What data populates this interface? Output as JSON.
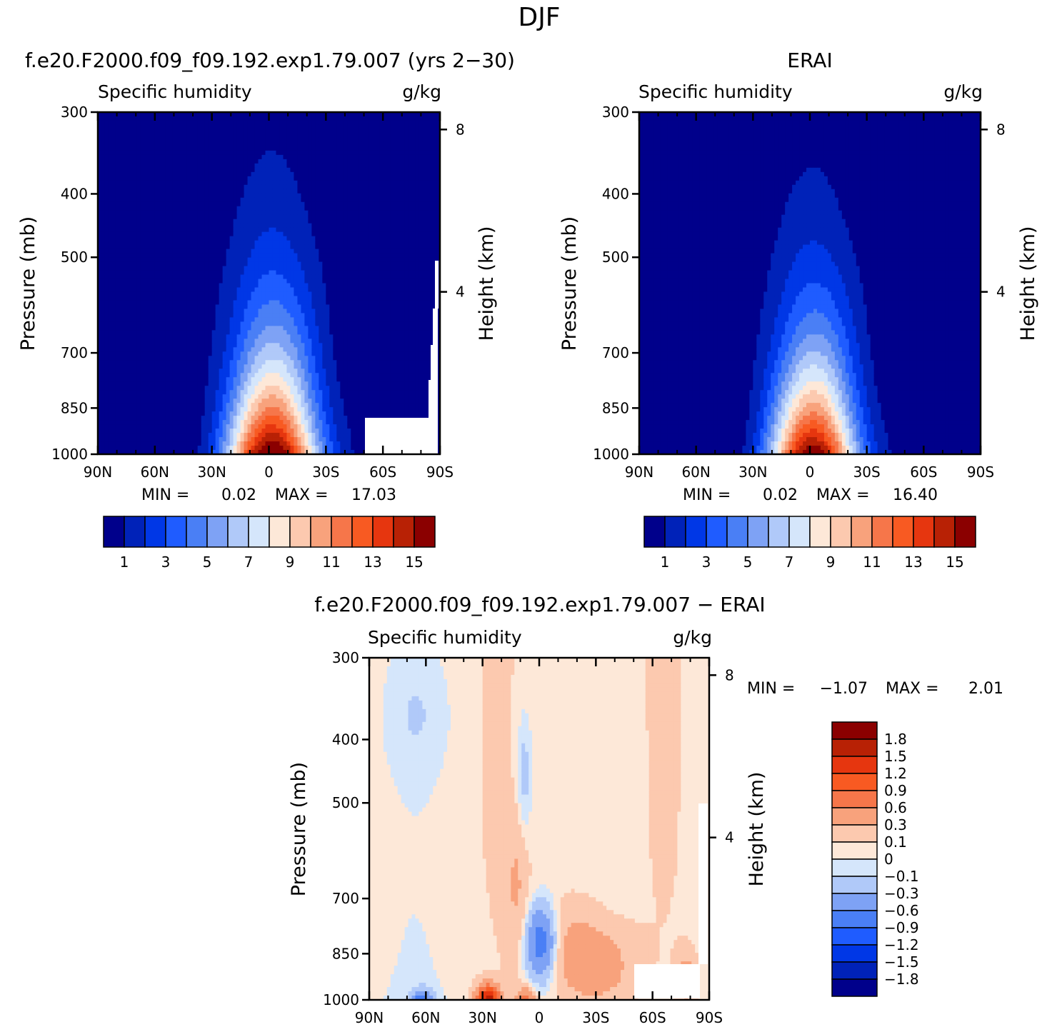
{
  "figure": {
    "title": "DJF"
  },
  "axes": {
    "x_ticks": [
      "90N",
      "60N",
      "30N",
      "0",
      "30S",
      "60S",
      "90S"
    ],
    "y_ticks": [
      "300",
      "400",
      "500",
      "700",
      "850",
      "1000"
    ],
    "height_ticks": [
      "8",
      "4"
    ],
    "left_label": "Pressure (mb)",
    "right_label": "Height (km)"
  },
  "palettes": {
    "sequential": [
      "#00008b",
      "#0022b8",
      "#0037e6",
      "#1f5cff",
      "#4a7ff5",
      "#7ea2f5",
      "#b0c9f9",
      "#d5e6fb",
      "#fde8d8",
      "#fcc9af",
      "#f8a27c",
      "#f6764a",
      "#f85a22",
      "#e6360f",
      "#b82105",
      "#8b0000"
    ],
    "diverging": [
      "#00008b",
      "#0022b8",
      "#0037e6",
      "#1f5cff",
      "#4a7ff5",
      "#7ea2f5",
      "#b0c9f9",
      "#d5e6fb",
      "#fde8d8",
      "#fcc9af",
      "#f8a27c",
      "#f6764a",
      "#f85a22",
      "#e6360f",
      "#b82105",
      "#8b0000"
    ]
  },
  "chart_data": [
    {
      "type": "heatmap",
      "title": "f.e20.F2000.f09_f09.192.exp1.79.007 (yrs 2−30)",
      "subtitle_left": "Specific humidity",
      "subtitle_right": "g/kg",
      "variable": "Specific humidity",
      "units": "g/kg",
      "xlim": [
        "90N",
        "90S"
      ],
      "ylim": [
        1000,
        300
      ],
      "y_scale": "log",
      "stats": {
        "min_label": "MIN =",
        "min": "0.02",
        "max_label": "MAX =",
        "max": "17.03"
      },
      "colorbar_labels": [
        "1",
        "3",
        "5",
        "7",
        "9",
        "11",
        "13",
        "15"
      ],
      "colorbar_levels": [
        1,
        2,
        3,
        4,
        5,
        6,
        7,
        8,
        9,
        10,
        11,
        12,
        13,
        14,
        15
      ],
      "field": {
        "peak": 17.03,
        "peak_lat": -2,
        "width": 24,
        "scale_height_km": 2.6
      }
    },
    {
      "type": "heatmap",
      "title": "ERAI",
      "subtitle_left": "Specific humidity",
      "subtitle_right": "g/kg",
      "variable": "Specific humidity",
      "units": "g/kg",
      "xlim": [
        "90N",
        "90S"
      ],
      "ylim": [
        1000,
        300
      ],
      "y_scale": "log",
      "stats": {
        "min_label": "MIN =",
        "min": "0.02",
        "max_label": "MAX =",
        "max": "16.40"
      },
      "colorbar_labels": [
        "1",
        "3",
        "5",
        "7",
        "9",
        "11",
        "13",
        "15"
      ],
      "colorbar_levels": [
        1,
        2,
        3,
        4,
        5,
        6,
        7,
        8,
        9,
        10,
        11,
        12,
        13,
        14,
        15
      ],
      "field": {
        "peak": 16.4,
        "peak_lat": -2,
        "width": 23,
        "scale_height_km": 2.5
      }
    },
    {
      "type": "heatmap",
      "title": "f.e20.F2000.f09_f09.192.exp1.79.007 − ERAI",
      "subtitle_left": "Specific humidity",
      "subtitle_right": "g/kg",
      "variable": "Specific humidity difference",
      "units": "g/kg",
      "xlim": [
        "90N",
        "90S"
      ],
      "ylim": [
        1000,
        300
      ],
      "y_scale": "log",
      "stats": {
        "min_label": "MIN =",
        "min": "−1.07",
        "max_label": "MAX =",
        "max": "2.01"
      },
      "colorbar_labels": [
        "1.8",
        "1.5",
        "1.2",
        "0.9",
        "0.6",
        "0.3",
        "0.1",
        "0",
        "−0.1",
        "−0.3",
        "−0.6",
        "−0.9",
        "−1.2",
        "−1.5",
        "−1.8"
      ],
      "colorbar_levels": [
        -1.8,
        -1.5,
        -1.2,
        -0.9,
        -0.6,
        -0.3,
        -0.1,
        0,
        0.1,
        0.3,
        0.6,
        0.9,
        1.2,
        1.5,
        1.8
      ]
    }
  ]
}
